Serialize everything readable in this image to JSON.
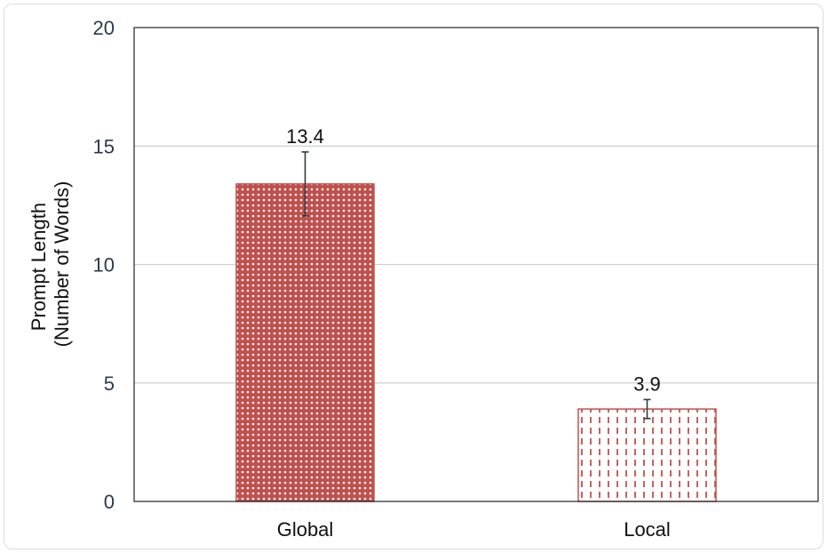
{
  "chart_data": {
    "type": "bar",
    "categories": [
      "Global",
      "Local"
    ],
    "values": [
      13.4,
      3.9
    ],
    "errors": [
      1.35,
      0.4
    ],
    "data_labels": [
      "13.4",
      "3.9"
    ],
    "title": "",
    "xlabel": "",
    "ylabel_lines": [
      "Prompt Length",
      "(Number of Words)"
    ],
    "ylim": [
      0,
      20
    ],
    "yticks": [
      0,
      5,
      10,
      15,
      20
    ],
    "ytick_labels": [
      "0",
      "5",
      "10",
      "15",
      "20"
    ],
    "grid": true,
    "colors": {
      "bar_stroke": "#c0504d",
      "pattern_fill": "#c0504d",
      "gridline": "#d0d0d0",
      "error_bar": "#2f3b45"
    },
    "patterns": [
      "crosshatch-dots",
      "vertical-dashes"
    ]
  }
}
